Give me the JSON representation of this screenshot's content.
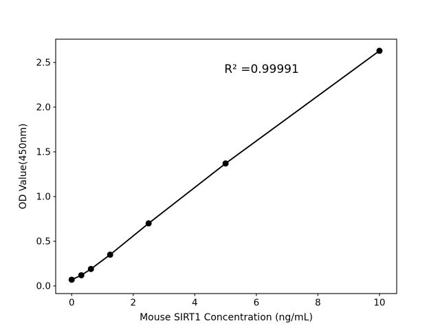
{
  "chart_data": {
    "type": "line",
    "x": [
      0,
      0.3125,
      0.625,
      1.25,
      2.5,
      5,
      10
    ],
    "y": [
      0.07,
      0.12,
      0.19,
      0.35,
      0.7,
      1.37,
      2.63
    ],
    "title": "",
    "xlabel": "Mouse SIRT1 Concentration (ng/mL)",
    "ylabel": "OD Value(450nm)",
    "xlim": [
      -0.52,
      10.56
    ],
    "ylim": [
      -0.085,
      2.76
    ],
    "x_ticks": {
      "values": [
        0,
        2,
        4,
        6,
        8,
        10
      ],
      "labels": [
        "0",
        "2",
        "4",
        "6",
        "8",
        "10"
      ]
    },
    "y_ticks": {
      "values": [
        0,
        0.5,
        1.0,
        1.5,
        2.0,
        2.5
      ],
      "labels": [
        "0.0",
        "0.5",
        "1.0",
        "1.5",
        "2.0",
        "2.5"
      ]
    },
    "grid": false,
    "legend": "none",
    "marker": "circle",
    "line_color": "#000000",
    "marker_color": "#000000",
    "background_color": "#ffffff",
    "annotation": {
      "text": "R² =0.99991",
      "x": 6.17,
      "y": 2.42
    }
  }
}
